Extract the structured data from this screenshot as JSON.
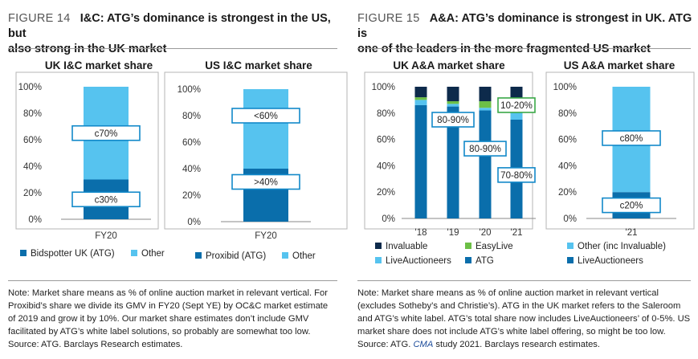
{
  "colors": {
    "dark": "#0a6eab",
    "light": "#56c3ef",
    "green": "#6cbf46",
    "navy": "#0d2a4b",
    "label_border": "#1289c9",
    "label_border_green": "#3aa847"
  },
  "left": {
    "figure": "FIGURE 14",
    "title_a": "I&C: ATG’s dominance is strongest in the US, but",
    "title_b": "also strong in the UK market",
    "note": [
      "Note: Market share means as % of online auction market in relevant vertical. For",
      "Proxibid’s share we divide its GMV in FY20 (Sept YE) by OC&C market estimate",
      "of 2019 and grow it by 10%. Our market share estimates don’t include GMV",
      "facilitated by ATG’s white label solutions, so probably are somewhat too low.",
      "Source: ATG. Barclays Research estimates."
    ]
  },
  "right": {
    "figure": "FIGURE 15",
    "title_a": "A&A: ATG’s dominance is strongest in UK. ATG is",
    "title_b": "one of the leaders in the more fragmented US market",
    "note": [
      "Note: Market share means as % of online auction market in relevant vertical",
      "(excludes Sotheby’s and Christie’s). ATG in the UK market refers to the Saleroom",
      "and ATG’s white label. ATG’s total share now includes LiveAuctioneers’ of 0-5%. US",
      "market share does not include ATG’s white label offering, so might be too low."
    ],
    "source_prefix": "Source: ATG. ",
    "source_italic": "CMA",
    "source_suffix": " study 2021. Barclays research estimates."
  },
  "chart_data": [
    {
      "type": "bar",
      "stacked": true,
      "title": "UK I&C market share",
      "categories": [
        "FY20"
      ],
      "ylim": [
        0,
        100
      ],
      "yticks": [
        "0%",
        "20%",
        "40%",
        "60%",
        "80%",
        "100%"
      ],
      "series": [
        {
          "name": "Bidspotter UK (ATG)",
          "color": "#0a6eab",
          "values": [
            30
          ]
        },
        {
          "name": "Other",
          "color": "#56c3ef",
          "values": [
            70
          ]
        }
      ],
      "annotations": [
        {
          "text": "c70%",
          "at": 65
        },
        {
          "text": "c30%",
          "at": 15
        }
      ],
      "legend_position": "bottom"
    },
    {
      "type": "bar",
      "stacked": true,
      "title": "US I&C market share",
      "categories": [
        "FY20"
      ],
      "ylim": [
        0,
        100
      ],
      "yticks": [
        "0%",
        "20%",
        "40%",
        "60%",
        "80%",
        "100%"
      ],
      "series": [
        {
          "name": "Proxibid (ATG)",
          "color": "#0a6eab",
          "values": [
            40
          ]
        },
        {
          "name": "Other",
          "color": "#56c3ef",
          "values": [
            60
          ]
        }
      ],
      "annotations": [
        {
          "text": "<60%",
          "at": 80
        },
        {
          "text": ">40%",
          "at": 30
        }
      ],
      "legend_position": "bottom"
    },
    {
      "type": "bar",
      "stacked": true,
      "title": "UK A&A market share",
      "categories": [
        "'18",
        "'19",
        "'20",
        "'21"
      ],
      "ylim": [
        0,
        100
      ],
      "yticks": [
        "0%",
        "10%",
        "20%",
        "30%",
        "40%",
        "50%",
        "60%",
        "70%",
        "80%",
        "90%",
        "100%"
      ],
      "series": [
        {
          "name": "ATG",
          "color": "#0a6eab",
          "values": [
            86,
            85,
            82,
            75
          ]
        },
        {
          "name": "LiveAuctioneers",
          "color": "#56c3ef",
          "values": [
            4,
            2,
            2,
            6
          ]
        },
        {
          "name": "EasyLive",
          "color": "#6cbf46",
          "values": [
            2,
            2,
            5,
            8
          ]
        },
        {
          "name": "Invaluable",
          "color": "#0d2a4b",
          "values": [
            8,
            11,
            11,
            11
          ]
        }
      ],
      "annotations": [
        {
          "text": "80-90%",
          "category": "'19",
          "at": 75
        },
        {
          "text": "80-90%",
          "category": "'20",
          "at": 53
        },
        {
          "text": "10-20%",
          "category": "'21",
          "at": 86
        },
        {
          "text": "70-80%",
          "category": "'21",
          "at": 33
        }
      ],
      "legend_position": "bottom"
    },
    {
      "type": "bar",
      "stacked": true,
      "title": "US A&A market share",
      "categories": [
        "'21"
      ],
      "ylim": [
        0,
        100
      ],
      "yticks": [
        "0%",
        "20%",
        "40%",
        "60%",
        "80%",
        "100%"
      ],
      "series": [
        {
          "name": "LiveAuctioneers",
          "color": "#0a6eab",
          "values": [
            20
          ]
        },
        {
          "name": "Other (inc Invaluable)",
          "color": "#56c3ef",
          "values": [
            80
          ]
        }
      ],
      "annotations": [
        {
          "text": "c80%",
          "at": 61
        },
        {
          "text": "c20%",
          "at": 10
        }
      ],
      "legend_position": "bottom"
    }
  ]
}
